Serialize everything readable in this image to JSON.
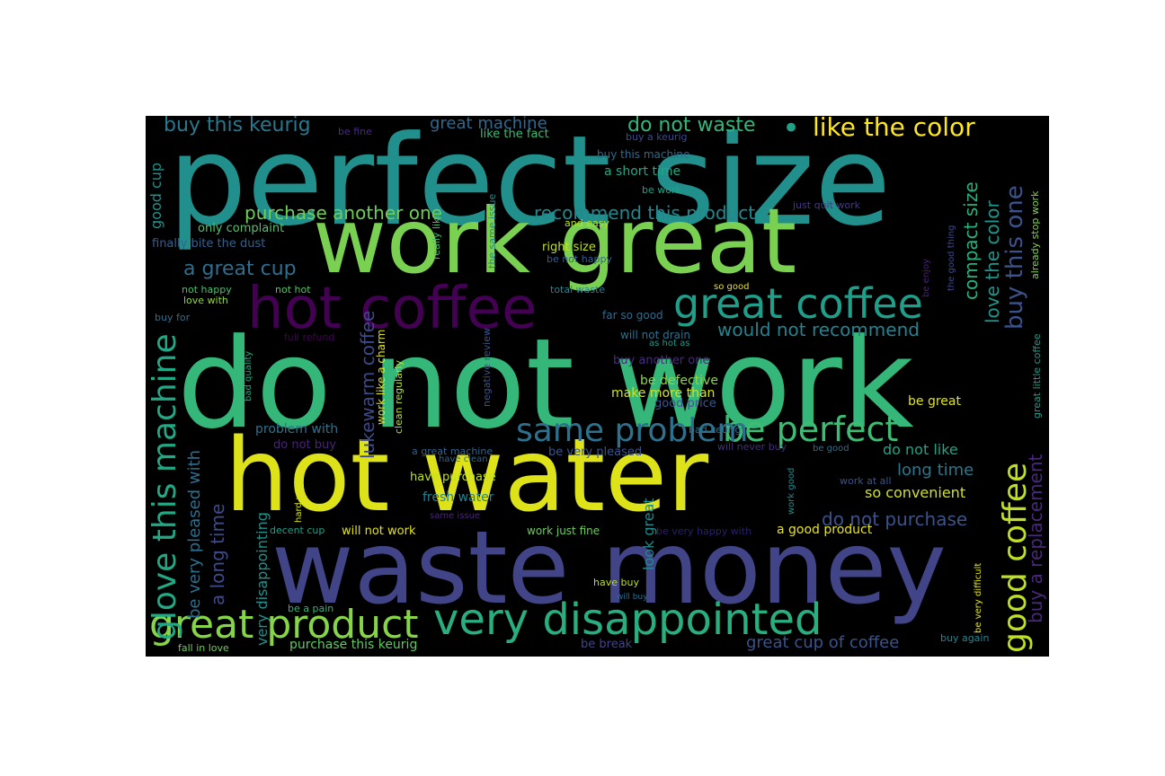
{
  "colors": {
    "background": "#000000",
    "page": "#ffffff"
  },
  "words": [
    {
      "id": "perfect-size",
      "text": "perfect size",
      "color": "#21908d"
    },
    {
      "id": "work-great",
      "text": "work great",
      "color": "#7ad151"
    },
    {
      "id": "do-not-work",
      "text": "do not work",
      "color": "#35b779"
    },
    {
      "id": "hot-water",
      "text": "hot water",
      "color": "#dde318"
    },
    {
      "id": "waste-money",
      "text": "waste money",
      "color": "#414487"
    },
    {
      "id": "hot-coffee",
      "text": "hot coffee",
      "color": "#440154"
    },
    {
      "id": "great-coffee",
      "text": "great coffee",
      "color": "#1f9e89"
    },
    {
      "id": "very-disappointed",
      "text": "very disappointed",
      "color": "#29af7f"
    },
    {
      "id": "great-product",
      "text": "great product",
      "color": "#86d549"
    },
    {
      "id": "glove-this-machine",
      "text": "glove this machine",
      "color": "#22a884"
    },
    {
      "id": "good-coffee",
      "text": "good coffee",
      "color": "#bddf26"
    },
    {
      "id": "be-perfect",
      "text": "be perfect",
      "color": "#3fbc73"
    },
    {
      "id": "same-problem",
      "text": "same problem",
      "color": "#2c728e"
    },
    {
      "id": "like-the-color",
      "text": "like the color",
      "color": "#fde725"
    },
    {
      "id": "bullet",
      "text": "•",
      "color": "#1fa187"
    },
    {
      "id": "buy-this-one",
      "text": "buy this one",
      "color": "#3b528b"
    },
    {
      "id": "do-not-waste",
      "text": "do not waste",
      "color": "#35b779"
    },
    {
      "id": "buy-this-keurig",
      "text": "buy this keurig",
      "color": "#2a788e"
    },
    {
      "id": "great-machine",
      "text": "great machine",
      "color": "#31688e"
    },
    {
      "id": "purchase-another-one",
      "text": "purchase another one",
      "color": "#6ece58"
    },
    {
      "id": "recommend-this-product",
      "text": "recommend this product",
      "color": "#23888e"
    },
    {
      "id": "a-great-cup",
      "text": "a great cup",
      "color": "#2e6e8e"
    },
    {
      "id": "would-not-recommend",
      "text": "would not recommend",
      "color": "#26828e"
    },
    {
      "id": "compact-size",
      "text": "compact size",
      "color": "#2ab07f"
    },
    {
      "id": "love-the-color",
      "text": "love the color",
      "color": "#1f968b"
    },
    {
      "id": "buy-a-replacement",
      "text": "buy a replacement",
      "color": "#482878"
    },
    {
      "id": "lukewarm-coffee",
      "text": "lukewarm coffee",
      "color": "#3e4989"
    },
    {
      "id": "be-very-pleased-with",
      "text": "be very pleased with",
      "color": "#2e6e8e"
    },
    {
      "id": "a-long-time",
      "text": "a long time",
      "color": "#3e4a89"
    },
    {
      "id": "do-not-purchase",
      "text": "do not purchase",
      "color": "#3b528b"
    },
    {
      "id": "long-time",
      "text": "long time",
      "color": "#2a778e"
    },
    {
      "id": "so-convenient",
      "text": "so convenient",
      "color": "#d0e11c"
    },
    {
      "id": "do-not-like",
      "text": "do not like",
      "color": "#20a486"
    },
    {
      "id": "good-cup",
      "text": "good cup",
      "color": "#21918c"
    },
    {
      "id": "very-disappointing",
      "text": "very disappointing",
      "color": "#21918c"
    },
    {
      "id": "look-great",
      "text": "look great",
      "color": "#238a8d"
    },
    {
      "id": "great-cup-of-coffee",
      "text": "great cup of coffee",
      "color": "#3b528b"
    },
    {
      "id": "purchase-this-keurig",
      "text": "purchase this keurig",
      "color": "#5ec962"
    },
    {
      "id": "be-fine",
      "text": "be fine",
      "color": "#472d7b"
    },
    {
      "id": "like-the-fact",
      "text": "like the fact",
      "color": "#3dbc74"
    },
    {
      "id": "buy-a-keurig",
      "text": "buy a keurig",
      "color": "#3e4989"
    },
    {
      "id": "buy-this-machine",
      "text": "buy this machine",
      "color": "#30698e"
    },
    {
      "id": "a-short-time",
      "text": "a short time",
      "color": "#22a785"
    },
    {
      "id": "be-work",
      "text": "be work",
      "color": "#20a386"
    },
    {
      "id": "just-quit-work",
      "text": "just quit work",
      "color": "#443a83"
    },
    {
      "id": "and-easy",
      "text": "and easy",
      "color": "#b5de2b"
    },
    {
      "id": "right-size",
      "text": "right size",
      "color": "#c2df23"
    },
    {
      "id": "be-not-happy",
      "text": "be not happy",
      "color": "#355f8d"
    },
    {
      "id": "only-complaint",
      "text": "only complaint",
      "color": "#50c46a"
    },
    {
      "id": "finally-bite-the-dust",
      "text": "finally bite the dust",
      "color": "#34608d"
    },
    {
      "id": "not-happy",
      "text": "not happy",
      "color": "#46c06f"
    },
    {
      "id": "not-hot",
      "text": "not hot",
      "color": "#54c568"
    },
    {
      "id": "love-with",
      "text": "love with",
      "color": "#90d743"
    },
    {
      "id": "buy-for",
      "text": "buy for",
      "color": "#2e6f8e"
    },
    {
      "id": "total-waste",
      "text": "total waste",
      "color": "#26828e"
    },
    {
      "id": "so-good",
      "text": "so good",
      "color": "#e5e419"
    },
    {
      "id": "far-so-good",
      "text": "far so good",
      "color": "#2f6c8e"
    },
    {
      "id": "will-not-drain",
      "text": "will not drain",
      "color": "#2d718e"
    },
    {
      "id": "as-hot-as",
      "text": "as hot as",
      "color": "#1f9a8a"
    },
    {
      "id": "full-refund",
      "text": "full refund",
      "color": "#440154"
    },
    {
      "id": "buy-another-one",
      "text": "buy another one",
      "color": "#472c7a"
    },
    {
      "id": "be-defective",
      "text": "be defective",
      "color": "#8bd646"
    },
    {
      "id": "make-more-than",
      "text": "make more than",
      "color": "#d2e21b"
    },
    {
      "id": "good-price",
      "text": "good price",
      "color": "#39568c"
    },
    {
      "id": "be-great",
      "text": "be great",
      "color": "#dfe318"
    },
    {
      "id": "bad-keurig",
      "text": "bad keurig",
      "color": "#2c738e"
    },
    {
      "id": "will-never-buy",
      "text": "will never buy",
      "color": "#472f7d"
    },
    {
      "id": "be-good",
      "text": "be good",
      "color": "#2d708e"
    },
    {
      "id": "work-at-all",
      "text": "work at all",
      "color": "#3a548c"
    },
    {
      "id": "problem-with",
      "text": "problem with",
      "color": "#2b748e"
    },
    {
      "id": "do-not-buy",
      "text": "do not buy",
      "color": "#482475"
    },
    {
      "id": "a-great-machine",
      "text": "a great machine",
      "color": "#33638d"
    },
    {
      "id": "have-clean",
      "text": "have clean",
      "color": "#31678e"
    },
    {
      "id": "be-very-pleased",
      "text": "be very pleased",
      "color": "#3a548c"
    },
    {
      "id": "have-purchase",
      "text": "have purchase",
      "color": "#c0df25"
    },
    {
      "id": "fresh-water",
      "text": "fresh water",
      "color": "#26818e"
    },
    {
      "id": "same-issue",
      "text": "same issue",
      "color": "#482576"
    },
    {
      "id": "will-not-work",
      "text": "will not work",
      "color": "#e2e418"
    },
    {
      "id": "decent-cup",
      "text": "decent cup",
      "color": "#1fa088"
    },
    {
      "id": "work-just-fine",
      "text": "work just fine",
      "color": "#6ccd5a"
    },
    {
      "id": "be-very-happy-with",
      "text": "be very happy with",
      "color": "#2d1e6d"
    },
    {
      "id": "a-good-product",
      "text": "a good product",
      "color": "#e7e419"
    },
    {
      "id": "have-buy",
      "text": "have buy",
      "color": "#b8de29"
    },
    {
      "id": "will-buy",
      "text": "will buy",
      "color": "#2e6d8e"
    },
    {
      "id": "be-a-pain",
      "text": "be a pain",
      "color": "#32b67a"
    },
    {
      "id": "fall-in-love",
      "text": "fall in love",
      "color": "#6ece58"
    },
    {
      "id": "be-break",
      "text": "be break",
      "color": "#414487"
    },
    {
      "id": "buy-again",
      "text": "buy again",
      "color": "#25848e"
    },
    {
      "id": "be-enjoy",
      "text": "be enjoy",
      "color": "#482475"
    },
    {
      "id": "really-like",
      "text": "really like",
      "color": "#3dbc74"
    },
    {
      "id": "the-same-issue",
      "text": "the same issue",
      "color": "#24868e"
    },
    {
      "id": "the-good-thing",
      "text": "the good thing",
      "color": "#3e4989"
    },
    {
      "id": "already-stop-work",
      "text": "already stop work",
      "color": "#81d34d"
    },
    {
      "id": "great-little-coffee",
      "text": "great little coffee",
      "color": "#1e9c89"
    },
    {
      "id": "work-like-a-charm",
      "text": "work like a charm",
      "color": "#e2e418"
    },
    {
      "id": "clean-regularly",
      "text": "clean regularly",
      "color": "#bade28"
    },
    {
      "id": "negative-review",
      "text": "negative review",
      "color": "#3a548c"
    },
    {
      "id": "bad-quality",
      "text": "bad quality",
      "color": "#22a785"
    },
    {
      "id": "hard-water",
      "text": "hard water",
      "color": "#d5e21a"
    },
    {
      "id": "work-good",
      "text": "work good",
      "color": "#238a8d"
    },
    {
      "id": "be-very-difficult",
      "text": "be very difficult",
      "color": "#e1e418"
    }
  ]
}
